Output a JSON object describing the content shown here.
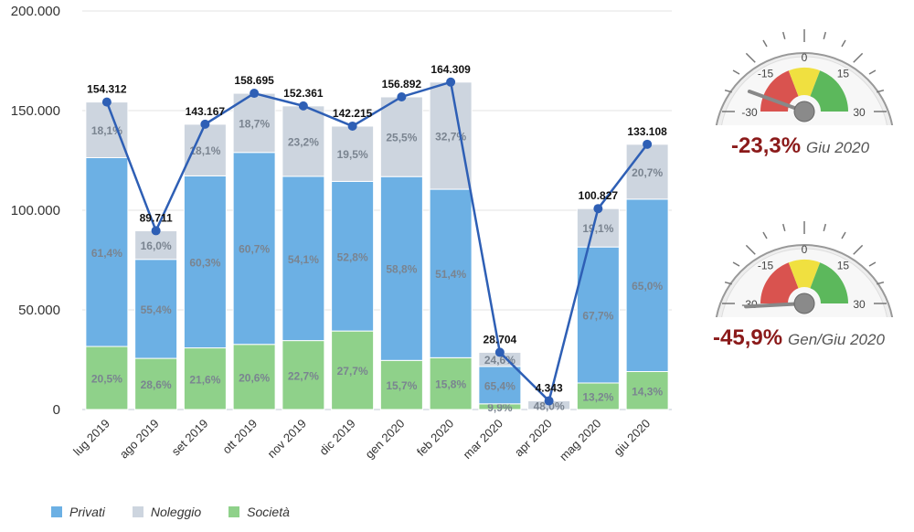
{
  "chart_data": {
    "type": "bar",
    "stacked": true,
    "categories": [
      "lug 2019",
      "ago 2019",
      "set 2019",
      "ott 2019",
      "nov 2019",
      "dic 2019",
      "gen 2020",
      "feb 2020",
      "mar 2020",
      "apr 2020",
      "mag 2020",
      "giu 2020"
    ],
    "series": [
      {
        "name": "Società",
        "color": "#8fd18a",
        "shares": [
          "20,5%",
          "28,6%",
          "21,6%",
          "20,6%",
          "22,7%",
          "27,7%",
          "15,7%",
          "15,8%",
          "9,9%",
          "",
          "13,2%",
          "14,3%"
        ]
      },
      {
        "name": "Privati",
        "color": "#6cb0e4",
        "shares": [
          "61,4%",
          "55,4%",
          "60,3%",
          "60,7%",
          "54,1%",
          "52,8%",
          "58,8%",
          "51,4%",
          "65,4%",
          "",
          "67,7%",
          "65,0%"
        ]
      },
      {
        "name": "Noleggio",
        "color": "#cdd5df",
        "shares": [
          "18,1%",
          "16,0%",
          "18,1%",
          "18,7%",
          "23,2%",
          "19,5%",
          "25,5%",
          "32,7%",
          "24,6%",
          "48,0%",
          "19,1%",
          "20,7%"
        ]
      }
    ],
    "totals": [
      154312,
      89711,
      143167,
      158695,
      152361,
      142215,
      156892,
      164309,
      28704,
      4343,
      100827,
      133108
    ],
    "total_labels": [
      "154.312",
      "89.711",
      "143.167",
      "158.695",
      "152.361",
      "142.215",
      "156.892",
      "164.309",
      "28.704",
      "4.343",
      "100.827",
      "133.108"
    ],
    "yticks": [
      "0",
      "50.000",
      "100.000",
      "150.000",
      "200.000"
    ],
    "ylim": [
      0,
      200000
    ],
    "grid": true,
    "legend_position": "bottom-left"
  },
  "gauges": [
    {
      "value": -23.3,
      "pct_label": "-23,3%",
      "period": "Giu 2020",
      "ticks": [
        "-30",
        "-15",
        "0",
        "15",
        "30"
      ]
    },
    {
      "value": -45.9,
      "pct_label": "-45,9%",
      "period": "Gen/Giu 2020",
      "ticks": [
        "-30",
        "-15",
        "0",
        "15",
        "30"
      ]
    }
  ],
  "legend": [
    {
      "label": "Privati",
      "color": "#6cb0e4"
    },
    {
      "label": "Noleggio",
      "color": "#cdd5df"
    },
    {
      "label": "Società",
      "color": "#8fd18a"
    }
  ]
}
